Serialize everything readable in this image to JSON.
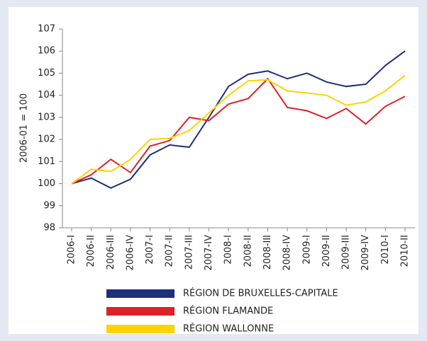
{
  "chart_data": {
    "type": "line",
    "y_label": "2006-01 = 100",
    "categories": [
      "2006-I",
      "2006-II",
      "2006-III",
      "2006-IV",
      "2007-I",
      "2007-II",
      "2007-III",
      "2007-IV",
      "2008-I",
      "2008-II",
      "2008-III",
      "2008-IV",
      "2009-I",
      "2009-II",
      "2009-III",
      "2009-IV",
      "2010-I",
      "2010-II"
    ],
    "series": [
      {
        "name": "RÉGION DE BRUXELLES-CAPITALE",
        "color": "#1f2f7a",
        "values": [
          100,
          100.25,
          99.8,
          100.2,
          101.3,
          101.75,
          101.65,
          103.0,
          104.4,
          104.95,
          105.1,
          104.75,
          105.0,
          104.6,
          104.4,
          104.5,
          105.35,
          106.0
        ]
      },
      {
        "name": "RÉGION FLAMANDE",
        "color": "#e02027",
        "values": [
          100,
          100.4,
          101.1,
          100.5,
          101.7,
          101.95,
          103.0,
          102.85,
          103.6,
          103.85,
          104.75,
          103.45,
          103.3,
          102.95,
          103.4,
          102.7,
          103.5,
          103.95
        ]
      },
      {
        "name": "RÉGION WALLONNE",
        "color": "#ffd200",
        "values": [
          100,
          100.65,
          100.55,
          101.1,
          102.0,
          102.05,
          102.4,
          103.2,
          104.0,
          104.65,
          104.7,
          104.2,
          104.1,
          104.0,
          103.55,
          103.7,
          104.2,
          104.9
        ]
      }
    ],
    "ylim": [
      98,
      107
    ],
    "yticks": [
      98,
      99,
      100,
      101,
      102,
      103,
      104,
      105,
      106,
      107
    ],
    "grid": false
  }
}
